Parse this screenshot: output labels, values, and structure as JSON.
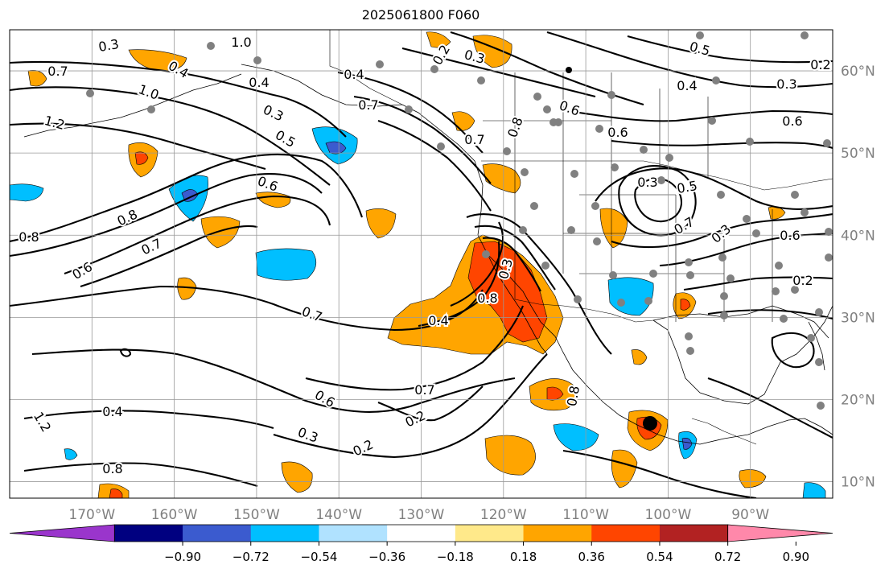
{
  "title": "2025061800 F060",
  "map": {
    "projection": "equirectangular",
    "lon_range": [
      -180,
      -80
    ],
    "lat_range": [
      8,
      65
    ],
    "longitude_labels": [
      "170°W",
      "160°W",
      "150°W",
      "140°W",
      "130°W",
      "120°W",
      "110°W",
      "100°W",
      "90°W"
    ],
    "latitude_labels": [
      "60°N",
      "50°N",
      "40°N",
      "30°N",
      "20°N",
      "10°N"
    ],
    "contour_labels": [
      "0.3",
      "0.7",
      "0.4",
      "1.0",
      "1.2",
      "0.4",
      "0.3",
      "0.5",
      "0.7",
      "0.6",
      "0.2",
      "0.3",
      "0.8",
      "0.7",
      "0.6",
      "0.8",
      "0.7",
      "0.4",
      "0.8",
      "0.3",
      "0.4",
      "0.7",
      "0.8",
      "0.6",
      "0.6",
      "0.4",
      "0.3",
      "0.6",
      "0.2",
      "0.5",
      "0.6",
      "0.7",
      "0.2",
      "0.2",
      "0.3",
      "0.4",
      "0.8",
      "1.2",
      "1.0",
      "0.8",
      "0.3",
      "0.5",
      "0.7",
      "0.3",
      "0.6",
      "0.2"
    ],
    "label_color": "#808080",
    "grid_color": "#999999"
  },
  "colorbar": {
    "ticks": [
      "−0.90",
      "−0.72",
      "−0.54",
      "−0.36",
      "−0.18",
      "0.18",
      "0.36",
      "0.54",
      "0.72",
      "0.90"
    ],
    "colors": [
      "#9a35cc",
      "#000080",
      "#3b5bcf",
      "#00bfff",
      "#b0e2ff",
      "#ffffff",
      "#ffe98a",
      "#ffa500",
      "#ff4500",
      "#b22222",
      "#ff88aa"
    ]
  }
}
